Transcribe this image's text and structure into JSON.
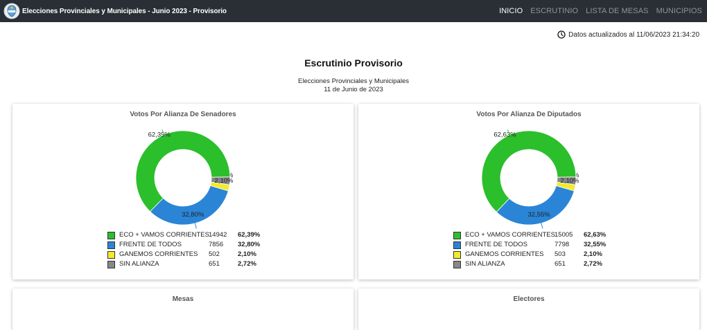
{
  "header": {
    "title": "Elecciones Provinciales y Municipales - Junio 2023 - Provisorio",
    "nav": [
      {
        "label": "INICIO",
        "active": true
      },
      {
        "label": "ESCRUTINIO",
        "active": false
      },
      {
        "label": "LISTA DE MESAS",
        "active": false
      },
      {
        "label": "MUNICIPIOS",
        "active": false
      }
    ]
  },
  "updated_text": "Datos actualizados al 11/06/2023 21:34:20",
  "page": {
    "title": "Escrutinio Provisorio",
    "subtitle_line1": "Elecciones Provinciales y Municipales",
    "subtitle_line2": "11 de Junio de 2023"
  },
  "colors": {
    "eco": "#2bbf2b",
    "frente": "#2a85d6",
    "ganemos": "#f3ea2c",
    "sin_alianza": "#888888",
    "navbar": "#2a2f35"
  },
  "cards": {
    "senadores": {
      "title": "Votos Por Alianza De Senadores"
    },
    "diputados": {
      "title": "Votos Por Alianza De Diputados"
    },
    "mesas": {
      "title": "Mesas"
    },
    "electores": {
      "title": "Electores"
    }
  },
  "chart_data": [
    {
      "type": "pie",
      "title": "Votos Por Alianza De Senadores",
      "categories": [
        "ECO + VAMOS CORRIENTES",
        "FRENTE DE TODOS",
        "GANEMOS CORRIENTES",
        "SIN ALIANZA"
      ],
      "values": [
        14942,
        7856,
        502,
        651
      ],
      "percent_labels": [
        "62,39%",
        "32,80%",
        "2,10%",
        "2,72%"
      ],
      "colors": [
        "#2bbf2b",
        "#2a85d6",
        "#f3ea2c",
        "#888888"
      ]
    },
    {
      "type": "pie",
      "title": "Votos Por Alianza De Diputados",
      "categories": [
        "ECO + VAMOS CORRIENTES",
        "FRENTE DE TODOS",
        "GANEMOS CORRIENTES",
        "SIN ALIANZA"
      ],
      "values": [
        15005,
        7798,
        503,
        651
      ],
      "percent_labels": [
        "62,63%",
        "32,55%",
        "2,10%",
        "2,72%"
      ],
      "colors": [
        "#2bbf2b",
        "#2a85d6",
        "#f3ea2c",
        "#888888"
      ]
    }
  ]
}
